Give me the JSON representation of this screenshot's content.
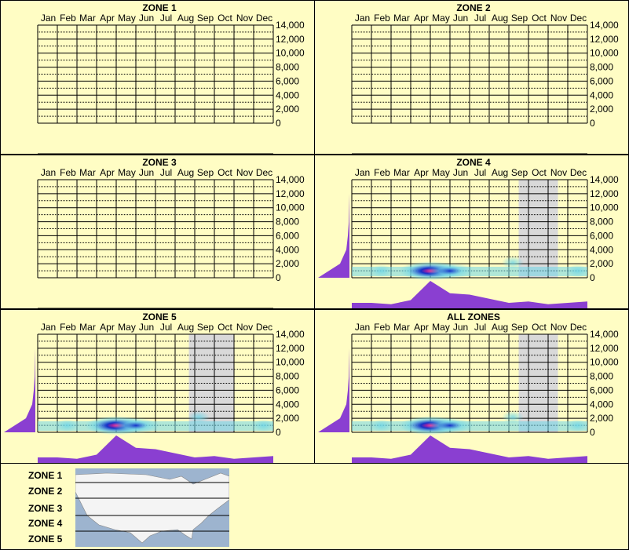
{
  "colors": {
    "background": "#fffdc4",
    "grid": "#000000",
    "profile": "#8a3fd1",
    "season_band": "#d9d9d9",
    "heat_low": "#6fd6e8",
    "heat_mid": "#1530c8",
    "heat_high": "#ff1c8c"
  },
  "months": [
    "Jan",
    "Feb",
    "Mar",
    "Apr",
    "May",
    "Jun",
    "Jul",
    "Aug",
    "Sep",
    "Oct",
    "Nov",
    "Dec"
  ],
  "y_ticks": [
    "14,000",
    "12,000",
    "10,000",
    "8,000",
    "6,000",
    "4,000",
    "2,000",
    "0"
  ],
  "chart_data": [
    {
      "type": "heatmap",
      "title": "ZONE 1",
      "x": [
        "Jan",
        "Feb",
        "Mar",
        "Apr",
        "May",
        "Jun",
        "Jul",
        "Aug",
        "Sep",
        "Oct",
        "Nov",
        "Dec"
      ],
      "y_ticks": [
        0,
        2000,
        4000,
        6000,
        8000,
        10000,
        12000,
        14000
      ],
      "ylim": [
        0,
        14000
      ],
      "has_data": false,
      "monthly_profile": [],
      "elevation_profile": [],
      "season_band_months": []
    },
    {
      "type": "heatmap",
      "title": "ZONE 2",
      "x": [
        "Jan",
        "Feb",
        "Mar",
        "Apr",
        "May",
        "Jun",
        "Jul",
        "Aug",
        "Sep",
        "Oct",
        "Nov",
        "Dec"
      ],
      "y_ticks": [
        0,
        2000,
        4000,
        6000,
        8000,
        10000,
        12000,
        14000
      ],
      "ylim": [
        0,
        14000
      ],
      "has_data": false,
      "monthly_profile": [],
      "elevation_profile": [],
      "season_band_months": []
    },
    {
      "type": "heatmap",
      "title": "ZONE 3",
      "x": [
        "Jan",
        "Feb",
        "Mar",
        "Apr",
        "May",
        "Jun",
        "Jul",
        "Aug",
        "Sep",
        "Oct",
        "Nov",
        "Dec"
      ],
      "y_ticks": [
        0,
        2000,
        4000,
        6000,
        8000,
        10000,
        12000,
        14000
      ],
      "ylim": [
        0,
        14000
      ],
      "has_data": false,
      "monthly_profile": [],
      "elevation_profile": [],
      "season_band_months": []
    },
    {
      "type": "heatmap",
      "title": "ZONE 4",
      "x": [
        "Jan",
        "Feb",
        "Mar",
        "Apr",
        "May",
        "Jun",
        "Jul",
        "Aug",
        "Sep",
        "Oct",
        "Nov",
        "Dec"
      ],
      "y_ticks": [
        0,
        2000,
        4000,
        6000,
        8000,
        10000,
        12000,
        14000
      ],
      "ylim": [
        0,
        14000
      ],
      "has_data": true,
      "monthly_profile": [
        0.2,
        0.2,
        0.15,
        0.3,
        1.0,
        0.55,
        0.5,
        0.35,
        0.2,
        0.25,
        0.15,
        0.2,
        0.25
      ],
      "elevation_profile": [
        1.0,
        0.3,
        0.1,
        0.05,
        0.02,
        0.01,
        0,
        0
      ],
      "season_band_months": [
        9,
        11
      ],
      "hot_spots": [
        {
          "month": 4.0,
          "elev": 300,
          "level": 3
        },
        {
          "month": 5.0,
          "elev": 300,
          "level": 2
        },
        {
          "month": 1.5,
          "elev": 300,
          "level": 1
        },
        {
          "month": 8.2,
          "elev": 1500,
          "level": 1
        },
        {
          "month": 11.5,
          "elev": 300,
          "level": 1
        }
      ]
    },
    {
      "type": "heatmap",
      "title": "ZONE 5",
      "x": [
        "Jan",
        "Feb",
        "Mar",
        "Apr",
        "May",
        "Jun",
        "Jul",
        "Aug",
        "Sep",
        "Oct",
        "Nov",
        "Dec"
      ],
      "y_ticks": [
        0,
        2000,
        4000,
        6000,
        8000,
        10000,
        12000,
        14000
      ],
      "ylim": [
        0,
        14000
      ],
      "has_data": true,
      "monthly_profile": [
        0.2,
        0.2,
        0.15,
        0.3,
        1.0,
        0.55,
        0.5,
        0.35,
        0.2,
        0.25,
        0.15,
        0.2,
        0.25
      ],
      "elevation_profile": [
        1.0,
        0.3,
        0.1,
        0.05,
        0.02,
        0.01,
        0,
        0
      ],
      "season_band_months": [
        8.2,
        10.5
      ],
      "hot_spots": [
        {
          "month": 4.0,
          "elev": 300,
          "level": 3
        },
        {
          "month": 5.0,
          "elev": 300,
          "level": 2
        },
        {
          "month": 1.5,
          "elev": 300,
          "level": 1
        },
        {
          "month": 8.2,
          "elev": 1500,
          "level": 1
        },
        {
          "month": 11.5,
          "elev": 300,
          "level": 1
        }
      ]
    },
    {
      "type": "heatmap",
      "title": "ALL ZONES",
      "x": [
        "Jan",
        "Feb",
        "Mar",
        "Apr",
        "May",
        "Jun",
        "Jul",
        "Aug",
        "Sep",
        "Oct",
        "Nov",
        "Dec"
      ],
      "y_ticks": [
        0,
        2000,
        4000,
        6000,
        8000,
        10000,
        12000,
        14000
      ],
      "ylim": [
        0,
        14000
      ],
      "has_data": true,
      "monthly_profile": [
        0.2,
        0.2,
        0.15,
        0.3,
        1.0,
        0.55,
        0.5,
        0.35,
        0.2,
        0.25,
        0.15,
        0.2,
        0.25
      ],
      "elevation_profile": [
        1.0,
        0.3,
        0.1,
        0.05,
        0.02,
        0.01,
        0,
        0
      ],
      "season_band_months": [
        9,
        11
      ],
      "hot_spots": [
        {
          "month": 4.0,
          "elev": 300,
          "level": 3
        },
        {
          "month": 5.0,
          "elev": 300,
          "level": 2
        },
        {
          "month": 1.5,
          "elev": 300,
          "level": 1
        },
        {
          "month": 8.2,
          "elev": 1500,
          "level": 1
        },
        {
          "month": 11.5,
          "elev": 300,
          "level": 1
        }
      ]
    }
  ],
  "map_legend": {
    "zone_labels": [
      "ZONE 1",
      "ZONE 2",
      "ZONE 3",
      "ZONE 4",
      "ZONE 5"
    ],
    "map_colors": {
      "water": "#9db4cf",
      "land": "#f4f4f4",
      "border": "#888888"
    }
  }
}
